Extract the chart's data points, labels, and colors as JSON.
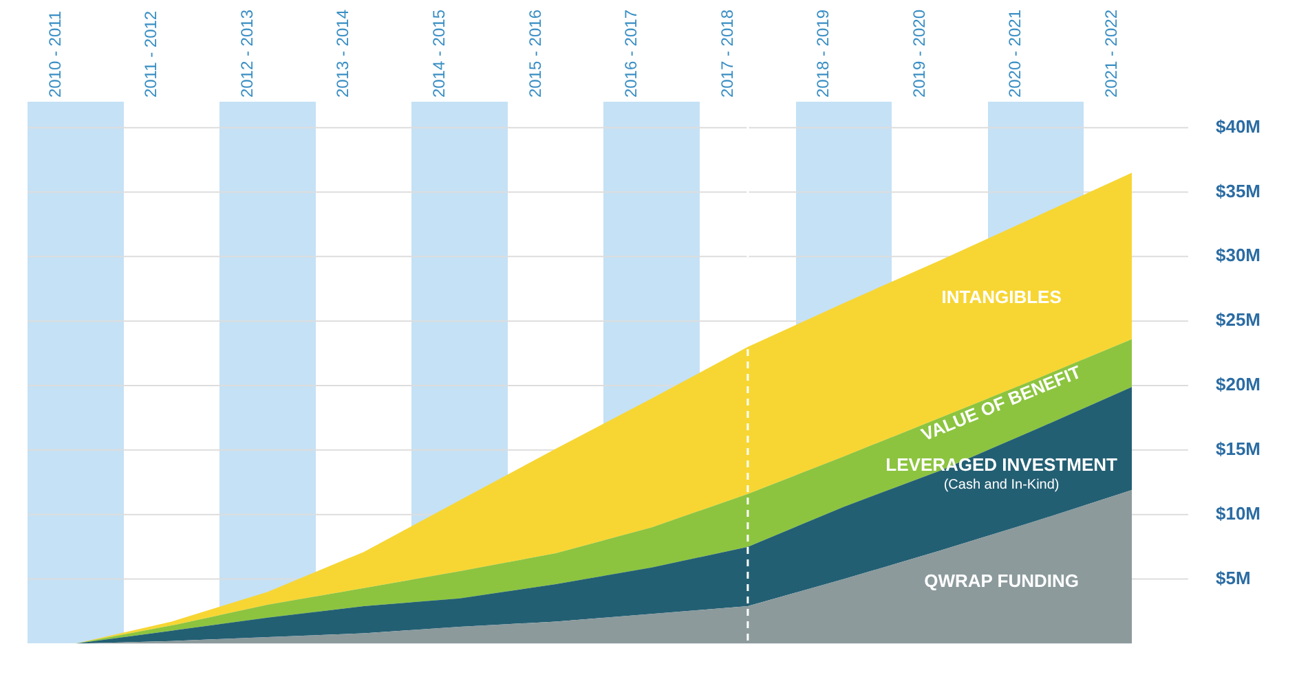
{
  "chart_data": {
    "type": "area",
    "stacked": true,
    "categories": [
      "2010 - 2011",
      "2011 - 2012",
      "2012 - 2013",
      "2013 - 2014",
      "2014 - 2015",
      "2015 - 2016",
      "2016 - 2017",
      "2017 - 2018",
      "2018 - 2019",
      "2019 - 2020",
      "2020 - 2021",
      "2021 - 2022"
    ],
    "series": [
      {
        "name": "QWRAP FUNDING",
        "color": "#8c9a9c",
        "values": [
          0,
          0.2,
          0.5,
          0.8,
          1.3,
          1.7,
          2.3,
          2.9,
          5,
          7.2,
          9.5,
          11.9
        ]
      },
      {
        "name": "LEVERAGED INVESTMENT\n(Cash and In-Kind)",
        "color": "#235f73",
        "values": [
          0,
          0.8,
          1.5,
          2.1,
          2.2,
          2.9,
          3.6,
          4.6,
          5.6,
          6.2,
          7.1,
          8
        ]
      },
      {
        "name": "VALUE OF BENEFIT",
        "color": "#8cc43f",
        "values": [
          0,
          0.4,
          1,
          1.4,
          2.1,
          2.4,
          3.1,
          4.1,
          3.9,
          4.1,
          3.9,
          3.7
        ]
      },
      {
        "name": "INTANGIBLES",
        "color": "#f7d633",
        "values": [
          0,
          0.3,
          1,
          2.8,
          5.5,
          8.1,
          10,
          11.4,
          11.9,
          12.2,
          12.6,
          12.9
        ]
      }
    ],
    "ylim": [
      0,
      42
    ],
    "yticks": [
      {
        "value": 5,
        "label": "$5M"
      },
      {
        "value": 10,
        "label": "$10M"
      },
      {
        "value": 15,
        "label": "$15M"
      },
      {
        "value": 20,
        "label": "$20M"
      },
      {
        "value": 25,
        "label": "$25M"
      },
      {
        "value": 30,
        "label": "$30M"
      },
      {
        "value": 35,
        "label": "$35M"
      },
      {
        "value": 40,
        "label": "$40M"
      }
    ],
    "ref_lines": [
      {
        "axis": "x",
        "value": "2017 - 2018",
        "color": "#ffffff",
        "line_style": "dashed"
      }
    ],
    "grid": "y",
    "legend": false
  }
}
